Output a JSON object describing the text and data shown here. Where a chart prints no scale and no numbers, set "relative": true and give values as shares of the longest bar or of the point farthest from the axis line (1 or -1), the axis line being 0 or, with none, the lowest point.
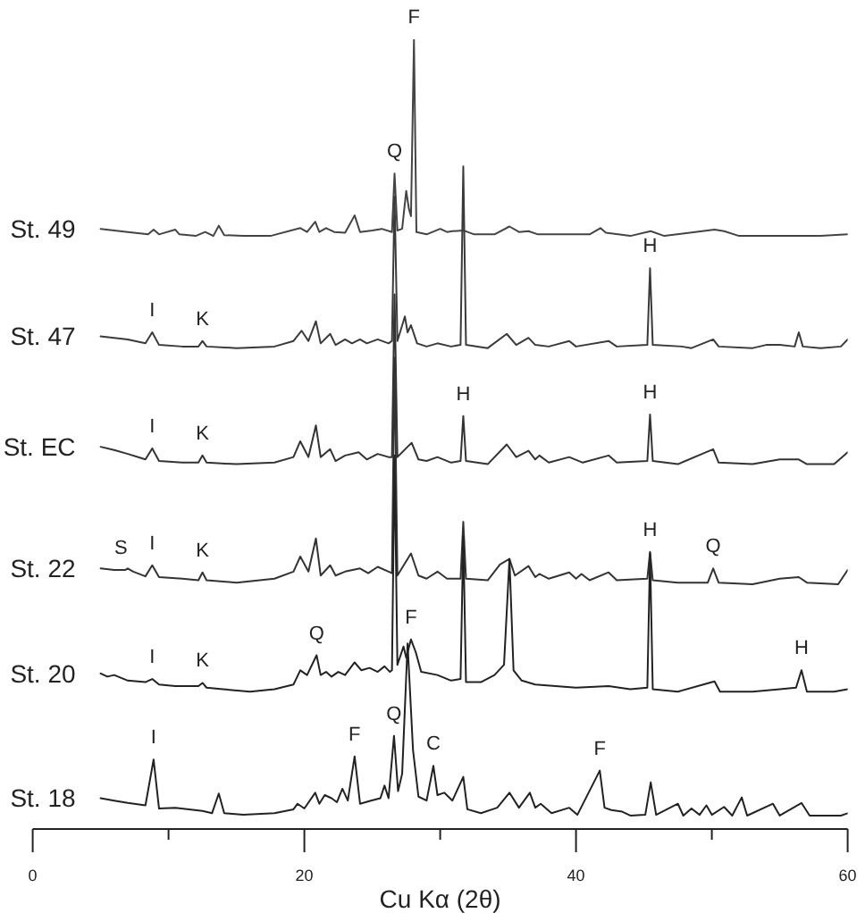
{
  "chart_data": {
    "type": "line",
    "relative": true,
    "xlabel": "Cu Kα (2θ)",
    "xlim": [
      0,
      60
    ],
    "xticks": [
      0,
      {
        "value": 10,
        "label": null
      },
      20,
      {
        "value": 30,
        "label": null
      },
      40,
      {
        "value": 50,
        "label": null
      },
      60
    ],
    "marker": "none",
    "series": [
      {
        "name": "St. 49",
        "color": "#444444",
        "x": [
          5.0,
          6.0,
          7.0,
          8.5,
          8.9,
          9.3,
          10.5,
          10.8,
          12.0,
          12.7,
          13.3,
          13.7,
          14.1,
          15.5,
          17.5,
          19.7,
          20.2,
          20.8,
          21.1,
          21.6,
          22.2,
          23.0,
          23.7,
          24.1,
          25.0,
          25.7,
          26.45,
          26.64,
          26.85,
          27.2,
          27.5,
          27.7,
          27.85,
          28.07,
          28.25,
          29.0,
          30.0,
          30.5,
          30.9,
          31.7,
          32.5,
          34.0,
          35.1,
          35.8,
          36.5,
          37.2,
          39.5,
          41.0,
          41.8,
          42.2,
          44.0,
          45.5,
          46.5,
          50.2,
          50.9,
          52.0,
          56.0,
          58.0,
          60.0
        ],
        "values": [
          0.76,
          0.758,
          0.756,
          0.753,
          0.759,
          0.753,
          0.759,
          0.753,
          0.751,
          0.756,
          0.751,
          0.764,
          0.752,
          0.751,
          0.751,
          0.761,
          0.756,
          0.769,
          0.756,
          0.761,
          0.756,
          0.755,
          0.777,
          0.756,
          0.758,
          0.76,
          0.756,
          0.83,
          0.758,
          0.76,
          0.808,
          0.785,
          0.776,
          1.0,
          0.756,
          0.753,
          0.76,
          0.756,
          0.757,
          0.758,
          0.753,
          0.753,
          0.763,
          0.756,
          0.757,
          0.753,
          0.753,
          0.753,
          0.761,
          0.755,
          0.751,
          0.757,
          0.751,
          0.759,
          0.757,
          0.751,
          0.751,
          0.751,
          0.753
        ]
      },
      {
        "name": "St. 47",
        "color": "#3a3a3a",
        "x": [
          5.0,
          6.0,
          7.0,
          8.3,
          8.8,
          9.3,
          11.0,
          12.2,
          12.5,
          12.8,
          15.0,
          17.8,
          19.2,
          19.8,
          20.3,
          20.85,
          21.2,
          21.9,
          22.3,
          23.0,
          23.5,
          24.1,
          24.6,
          25.4,
          26.2,
          26.45,
          26.64,
          26.85,
          27.4,
          27.6,
          27.85,
          28.3,
          29.0,
          29.8,
          30.8,
          31.5,
          31.7,
          31.9,
          33.5,
          34.9,
          35.6,
          36.5,
          37.0,
          38.0,
          39.5,
          40.0,
          42.4,
          43.0,
          45.25,
          45.45,
          45.65,
          47.8,
          48.5,
          50.1,
          50.5,
          53.0,
          54.0,
          55.0,
          56.1,
          56.4,
          56.7,
          58.0,
          59.5,
          60.0
        ],
        "values": [
          0.624,
          0.622,
          0.62,
          0.615,
          0.629,
          0.613,
          0.611,
          0.611,
          0.618,
          0.611,
          0.609,
          0.611,
          0.618,
          0.631,
          0.618,
          0.643,
          0.615,
          0.627,
          0.613,
          0.62,
          0.615,
          0.62,
          0.615,
          0.62,
          0.615,
          0.618,
          0.801,
          0.618,
          0.649,
          0.629,
          0.638,
          0.615,
          0.611,
          0.615,
          0.611,
          0.613,
          0.839,
          0.613,
          0.609,
          0.627,
          0.613,
          0.622,
          0.613,
          0.611,
          0.618,
          0.611,
          0.618,
          0.611,
          0.613,
          0.71,
          0.613,
          0.611,
          0.609,
          0.62,
          0.611,
          0.609,
          0.613,
          0.613,
          0.611,
          0.629,
          0.611,
          0.609,
          0.611,
          0.62
        ]
      },
      {
        "name": "St. EC",
        "color": "#333333",
        "x": [
          5.0,
          6.0,
          7.0,
          8.3,
          8.8,
          9.3,
          11.0,
          12.2,
          12.5,
          12.8,
          15.0,
          17.8,
          19.2,
          19.7,
          20.3,
          20.85,
          21.2,
          21.9,
          22.3,
          23.0,
          24.0,
          24.6,
          25.4,
          26.2,
          26.45,
          26.64,
          26.85,
          27.6,
          27.9,
          28.4,
          29.0,
          29.8,
          30.8,
          31.5,
          31.7,
          31.9,
          33.5,
          34.9,
          35.6,
          36.5,
          37.0,
          37.3,
          38.0,
          39.5,
          40.5,
          42.4,
          43.0,
          45.25,
          45.45,
          45.65,
          47.5,
          50.1,
          50.5,
          53.0,
          55.0,
          56.4,
          57.0,
          59.0,
          60.0
        ],
        "values": [
          0.484,
          0.48,
          0.475,
          0.468,
          0.482,
          0.466,
          0.464,
          0.464,
          0.473,
          0.464,
          0.462,
          0.464,
          0.471,
          0.491,
          0.471,
          0.511,
          0.471,
          0.481,
          0.466,
          0.473,
          0.477,
          0.468,
          0.475,
          0.471,
          0.471,
          0.677,
          0.471,
          0.484,
          0.489,
          0.468,
          0.466,
          0.471,
          0.464,
          0.466,
          0.523,
          0.466,
          0.462,
          0.487,
          0.471,
          0.479,
          0.468,
          0.473,
          0.464,
          0.471,
          0.464,
          0.473,
          0.464,
          0.466,
          0.525,
          0.466,
          0.462,
          0.481,
          0.464,
          0.462,
          0.468,
          0.468,
          0.462,
          0.462,
          0.477
        ]
      },
      {
        "name": "St. 22",
        "color": "#333333",
        "x": [
          5.0,
          6.0,
          6.8,
          7.0,
          7.4,
          8.3,
          8.8,
          9.3,
          11.0,
          12.2,
          12.5,
          12.8,
          15.0,
          17.8,
          19.2,
          19.7,
          20.3,
          20.85,
          21.2,
          21.9,
          22.3,
          23.0,
          24.1,
          24.7,
          25.4,
          26.2,
          26.45,
          26.64,
          26.85,
          27.85,
          28.4,
          29.0,
          29.8,
          30.5,
          31.5,
          31.7,
          31.9,
          33.5,
          34.4,
          35.1,
          35.5,
          36.5,
          37.0,
          37.3,
          38.0,
          39.5,
          40.0,
          40.4,
          41.0,
          42.4,
          43.0,
          45.25,
          45.45,
          45.65,
          47.5,
          49.7,
          50.1,
          50.5,
          53.0,
          55.0,
          56.4,
          57.0,
          59.3,
          60.0
        ],
        "values": [
          0.33,
          0.328,
          0.328,
          0.33,
          0.326,
          0.32,
          0.334,
          0.319,
          0.317,
          0.315,
          0.325,
          0.315,
          0.312,
          0.317,
          0.326,
          0.345,
          0.326,
          0.368,
          0.321,
          0.334,
          0.321,
          0.326,
          0.33,
          0.324,
          0.332,
          0.326,
          0.324,
          0.597,
          0.321,
          0.349,
          0.321,
          0.317,
          0.326,
          0.317,
          0.317,
          0.389,
          0.317,
          0.315,
          0.335,
          0.342,
          0.321,
          0.333,
          0.319,
          0.323,
          0.317,
          0.325,
          0.317,
          0.323,
          0.315,
          0.325,
          0.315,
          0.317,
          0.351,
          0.315,
          0.312,
          0.312,
          0.33,
          0.312,
          0.31,
          0.317,
          0.319,
          0.312,
          0.31,
          0.328
        ]
      },
      {
        "name": "St. 20",
        "color": "#222222",
        "x": [
          5.0,
          5.5,
          6.0,
          7.0,
          8.3,
          8.8,
          9.3,
          10.5,
          12.2,
          12.5,
          12.8,
          14.0,
          16.0,
          17.8,
          19.2,
          19.7,
          20.2,
          20.9,
          21.2,
          21.6,
          22.0,
          22.5,
          23.0,
          23.7,
          24.2,
          24.8,
          25.4,
          25.9,
          26.3,
          26.45,
          26.64,
          26.85,
          27.3,
          27.5,
          27.85,
          28.2,
          28.6,
          29.8,
          30.8,
          31.5,
          31.7,
          31.9,
          33.0,
          34.0,
          34.7,
          35.1,
          35.4,
          36.0,
          37.0,
          38.5,
          40.0,
          42.4,
          44.0,
          45.25,
          45.45,
          45.65,
          47.5,
          50.2,
          50.6,
          53.0,
          55.0,
          56.2,
          56.6,
          57.0,
          59.0,
          60.0
        ],
        "values": [
          0.197,
          0.193,
          0.195,
          0.188,
          0.186,
          0.19,
          0.183,
          0.181,
          0.181,
          0.185,
          0.179,
          0.177,
          0.174,
          0.177,
          0.183,
          0.201,
          0.195,
          0.22,
          0.195,
          0.199,
          0.193,
          0.199,
          0.195,
          0.211,
          0.201,
          0.204,
          0.199,
          0.206,
          0.199,
          0.201,
          0.473,
          0.208,
          0.231,
          0.217,
          0.24,
          0.224,
          0.199,
          0.195,
          0.188,
          0.19,
          0.371,
          0.186,
          0.186,
          0.195,
          0.208,
          0.342,
          0.201,
          0.188,
          0.183,
          0.181,
          0.179,
          0.181,
          0.177,
          0.179,
          0.349,
          0.177,
          0.174,
          0.187,
          0.174,
          0.174,
          0.177,
          0.179,
          0.201,
          0.174,
          0.174,
          0.177
        ]
      },
      {
        "name": "St. 18",
        "color": "#222222",
        "x": [
          5.0,
          6.0,
          7.0,
          8.3,
          8.9,
          9.3,
          10.5,
          12.5,
          13.2,
          13.7,
          14.1,
          15.5,
          17.8,
          19.2,
          19.5,
          20.0,
          20.8,
          21.1,
          21.5,
          22.0,
          22.4,
          22.8,
          23.2,
          23.7,
          24.1,
          24.9,
          25.6,
          25.9,
          26.2,
          26.6,
          26.9,
          27.2,
          27.6,
          28.0,
          28.4,
          29.0,
          29.5,
          29.8,
          30.3,
          30.9,
          31.7,
          32.0,
          33.0,
          34.2,
          35.1,
          35.8,
          36.6,
          37.0,
          37.4,
          38.2,
          39.5,
          40.1,
          41.75,
          42.1,
          42.6,
          43.4,
          44.0,
          45.1,
          45.5,
          45.9,
          47.5,
          47.9,
          48.5,
          49.1,
          49.6,
          50.0,
          50.9,
          51.5,
          52.2,
          52.6,
          54.5,
          55.0,
          56.6,
          57.2,
          59.5,
          60.0
        ],
        "values": [
          0.039,
          0.036,
          0.033,
          0.03,
          0.088,
          0.026,
          0.027,
          0.023,
          0.02,
          0.045,
          0.02,
          0.018,
          0.02,
          0.025,
          0.032,
          0.026,
          0.046,
          0.032,
          0.043,
          0.039,
          0.034,
          0.051,
          0.036,
          0.092,
          0.032,
          0.036,
          0.039,
          0.055,
          0.039,
          0.118,
          0.048,
          0.07,
          0.235,
          0.1,
          0.041,
          0.036,
          0.08,
          0.043,
          0.046,
          0.036,
          0.066,
          0.025,
          0.02,
          0.027,
          0.046,
          0.027,
          0.046,
          0.027,
          0.032,
          0.02,
          0.027,
          0.018,
          0.074,
          0.027,
          0.024,
          0.022,
          0.017,
          0.018,
          0.059,
          0.018,
          0.032,
          0.017,
          0.026,
          0.018,
          0.03,
          0.018,
          0.028,
          0.017,
          0.04,
          0.017,
          0.032,
          0.017,
          0.033,
          0.017,
          0.017,
          0.02
        ]
      }
    ],
    "annotations": [
      {
        "text": "F",
        "x": 28.07,
        "y": 1.0
      },
      {
        "text": "Q",
        "x": 26.64,
        "y": 0.83
      },
      {
        "text": "I",
        "x": 8.8,
        "y": 0.629
      },
      {
        "text": "K",
        "x": 12.5,
        "y": 0.618
      },
      {
        "text": "H",
        "x": 45.45,
        "y": 0.71
      },
      {
        "text": "I",
        "x": 8.8,
        "y": 0.482
      },
      {
        "text": "K",
        "x": 12.5,
        "y": 0.473
      },
      {
        "text": "H",
        "x": 31.7,
        "y": 0.523
      },
      {
        "text": "H",
        "x": 45.45,
        "y": 0.525
      },
      {
        "text": "S",
        "x": 6.5,
        "y": 0.328
      },
      {
        "text": "I",
        "x": 8.8,
        "y": 0.334
      },
      {
        "text": "K",
        "x": 12.5,
        "y": 0.325
      },
      {
        "text": "H",
        "x": 45.45,
        "y": 0.351
      },
      {
        "text": "Q",
        "x": 50.1,
        "y": 0.33
      },
      {
        "text": "I",
        "x": 8.8,
        "y": 0.19
      },
      {
        "text": "K",
        "x": 12.5,
        "y": 0.185
      },
      {
        "text": "Q",
        "x": 20.9,
        "y": 0.22
      },
      {
        "text": "F",
        "x": 27.85,
        "y": 0.24
      },
      {
        "text": "H",
        "x": 56.6,
        "y": 0.201
      },
      {
        "text": "I",
        "x": 8.9,
        "y": 0.088
      },
      {
        "text": "F",
        "x": 23.7,
        "y": 0.092
      },
      {
        "text": "Q",
        "x": 26.6,
        "y": 0.118
      },
      {
        "text": "C",
        "x": 29.5,
        "y": 0.08
      },
      {
        "text": "F",
        "x": 41.75,
        "y": 0.074
      }
    ]
  }
}
